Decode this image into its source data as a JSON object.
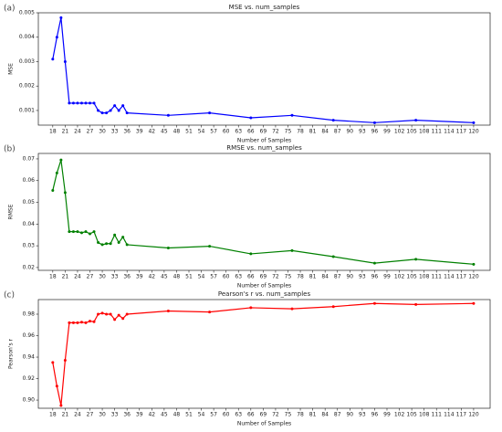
{
  "chart_data": [
    {
      "type": "line",
      "panel_label": "(a)",
      "title": "MSE vs. num_samples",
      "x_label": "Number of Samples",
      "y_label": "MSE",
      "color": "#0000ff",
      "x": [
        18,
        19,
        20,
        21,
        22,
        23,
        24,
        25,
        26,
        27,
        28,
        29,
        30,
        31,
        32,
        33,
        34,
        35,
        36,
        46,
        56,
        66,
        76,
        86,
        96,
        106,
        120
      ],
      "values": [
        0.0031,
        0.004,
        0.0048,
        0.003,
        0.0013,
        0.0013,
        0.0013,
        0.0013,
        0.0013,
        0.0013,
        0.0013,
        0.001,
        0.0009,
        0.0009,
        0.001,
        0.0012,
        0.001,
        0.0012,
        0.0009,
        0.0008,
        0.0009,
        0.0007,
        0.0008,
        0.0006,
        0.0005,
        0.0006,
        0.0005
      ],
      "xlim": [
        14.5,
        124
      ],
      "xticks": [
        18,
        21,
        24,
        27,
        30,
        33,
        36,
        39,
        42,
        45,
        48,
        51,
        54,
        57,
        60,
        63,
        66,
        69,
        72,
        75,
        78,
        81,
        84,
        87,
        90,
        93,
        96,
        99,
        102,
        105,
        108,
        111,
        114,
        117,
        120
      ],
      "ylim": [
        0.0004,
        0.005
      ],
      "yticks": [
        0.001,
        0.002,
        0.003,
        0.004,
        0.005
      ]
    },
    {
      "type": "line",
      "panel_label": "(b)",
      "title": "RMSE vs. num_samples",
      "x_label": "Number of Samples",
      "y_label": "RMSE",
      "color": "#008000",
      "x": [
        18,
        19,
        20,
        21,
        22,
        23,
        24,
        25,
        26,
        27,
        28,
        29,
        30,
        31,
        32,
        33,
        34,
        35,
        36,
        46,
        56,
        66,
        76,
        86,
        96,
        106,
        120
      ],
      "values": [
        0.0555,
        0.0635,
        0.0695,
        0.0545,
        0.0365,
        0.0365,
        0.0365,
        0.036,
        0.0365,
        0.0355,
        0.0365,
        0.0315,
        0.0305,
        0.031,
        0.031,
        0.035,
        0.0315,
        0.034,
        0.0305,
        0.029,
        0.0298,
        0.0263,
        0.0278,
        0.025,
        0.022,
        0.0238,
        0.0215
      ],
      "xlim": [
        14.5,
        124
      ],
      "xticks": [
        18,
        21,
        24,
        27,
        30,
        33,
        36,
        39,
        42,
        45,
        48,
        51,
        54,
        57,
        60,
        63,
        66,
        69,
        72,
        75,
        78,
        81,
        84,
        87,
        90,
        93,
        96,
        99,
        102,
        105,
        108,
        111,
        114,
        117,
        120
      ],
      "ylim": [
        0.0187,
        0.0725
      ],
      "yticks": [
        0.02,
        0.03,
        0.04,
        0.05,
        0.06,
        0.07
      ]
    },
    {
      "type": "line",
      "panel_label": "(c)",
      "title": "Pearson's r vs. num_samples",
      "x_label": "Number of Samples",
      "y_label": "Pearson's r",
      "color": "#ff0000",
      "x": [
        18,
        19,
        20,
        21,
        22,
        23,
        24,
        25,
        26,
        27,
        28,
        29,
        30,
        31,
        32,
        33,
        34,
        35,
        36,
        46,
        56,
        66,
        76,
        86,
        96,
        106,
        120
      ],
      "values": [
        0.935,
        0.913,
        0.895,
        0.937,
        0.972,
        0.972,
        0.972,
        0.9725,
        0.972,
        0.9735,
        0.973,
        0.98,
        0.981,
        0.98,
        0.98,
        0.975,
        0.979,
        0.976,
        0.98,
        0.983,
        0.982,
        0.986,
        0.985,
        0.987,
        0.99,
        0.989,
        0.99
      ],
      "xlim": [
        14.5,
        124
      ],
      "xticks": [
        18,
        21,
        24,
        27,
        30,
        33,
        36,
        39,
        42,
        45,
        48,
        51,
        54,
        57,
        60,
        63,
        66,
        69,
        72,
        75,
        78,
        81,
        84,
        87,
        90,
        93,
        96,
        99,
        102,
        105,
        108,
        111,
        114,
        117,
        120
      ],
      "ylim": [
        0.8924,
        0.9936
      ],
      "yticks": [
        {
          "value": 0.9,
          "label": "0.90"
        },
        {
          "value": 0.92,
          "label": "0.92"
        },
        {
          "value": 0.94,
          "label": "0.94"
        },
        {
          "value": 0.96,
          "label": "0.96"
        },
        {
          "value": 0.98,
          "label": "0.98"
        }
      ]
    }
  ]
}
